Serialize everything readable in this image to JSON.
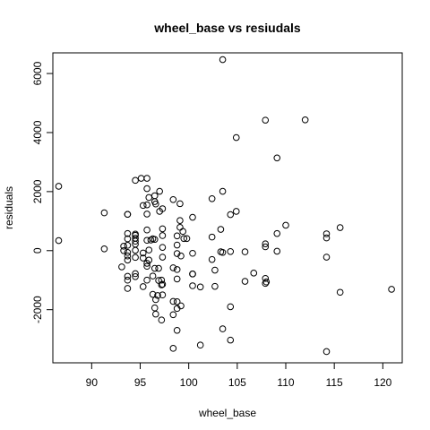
{
  "chart_data": {
    "type": "scatter",
    "title": "wheel_base  vs resiudals",
    "xlabel": "wheel_base",
    "ylabel": "residuals",
    "xlim": [
      86.0,
      122.0
    ],
    "ylim": [
      -3800,
      6700
    ],
    "xticks": [
      90,
      95,
      100,
      105,
      110,
      115,
      120
    ],
    "yticks": [
      -2000,
      0,
      2000,
      4000,
      6000
    ],
    "grid": false,
    "marker": "open-circle",
    "points": [
      [
        86.6,
        2180
      ],
      [
        86.6,
        340
      ],
      [
        91.3,
        1280
      ],
      [
        91.3,
        60
      ],
      [
        93.1,
        -550
      ],
      [
        93.3,
        0
      ],
      [
        93.3,
        150
      ],
      [
        93.7,
        -180
      ],
      [
        93.7,
        -320
      ],
      [
        93.7,
        -60
      ],
      [
        93.7,
        180
      ],
      [
        93.7,
        400
      ],
      [
        93.7,
        580
      ],
      [
        93.7,
        1230
      ],
      [
        93.7,
        1230
      ],
      [
        93.7,
        -870
      ],
      [
        93.7,
        -1000
      ],
      [
        93.7,
        -1280
      ],
      [
        94.5,
        -780
      ],
      [
        94.5,
        -880
      ],
      [
        94.5,
        220
      ],
      [
        94.5,
        320
      ],
      [
        94.5,
        420
      ],
      [
        94.5,
        520
      ],
      [
        94.5,
        2380
      ],
      [
        94.5,
        -230
      ],
      [
        94.5,
        560
      ],
      [
        94.5,
        10
      ],
      [
        95.1,
        2450
      ],
      [
        95.3,
        1530
      ],
      [
        95.3,
        -80
      ],
      [
        95.3,
        -250
      ],
      [
        95.3,
        -1220
      ],
      [
        95.7,
        2450
      ],
      [
        95.7,
        -530
      ],
      [
        95.7,
        -430
      ],
      [
        95.7,
        350
      ],
      [
        95.7,
        700
      ],
      [
        95.7,
        1240
      ],
      [
        95.7,
        1550
      ],
      [
        95.7,
        -1000
      ],
      [
        95.7,
        2100
      ],
      [
        95.9,
        1800
      ],
      [
        95.9,
        20
      ],
      [
        95.9,
        -320
      ],
      [
        96.1,
        360
      ],
      [
        96.3,
        -1480
      ],
      [
        96.3,
        -860
      ],
      [
        96.3,
        400
      ],
      [
        96.5,
        -600
      ],
      [
        96.5,
        -1940
      ],
      [
        96.5,
        1860
      ],
      [
        96.5,
        1660
      ],
      [
        96.5,
        380
      ],
      [
        96.6,
        -1660
      ],
      [
        96.6,
        1580
      ],
      [
        96.6,
        -2150
      ],
      [
        96.8,
        -1520
      ],
      [
        96.9,
        -600
      ],
      [
        96.9,
        -1010
      ],
      [
        97.0,
        1330
      ],
      [
        97.0,
        2010
      ],
      [
        97.2,
        -2350
      ],
      [
        97.2,
        -1000
      ],
      [
        97.2,
        -1160
      ],
      [
        97.3,
        1420
      ],
      [
        97.3,
        740
      ],
      [
        97.3,
        -1500
      ],
      [
        97.3,
        510
      ],
      [
        97.3,
        110
      ],
      [
        97.3,
        -1140
      ],
      [
        97.3,
        -220
      ],
      [
        98.4,
        -3310
      ],
      [
        98.4,
        -2170
      ],
      [
        98.4,
        -1720
      ],
      [
        98.4,
        -580
      ],
      [
        98.4,
        1730
      ],
      [
        98.8,
        -1730
      ],
      [
        98.8,
        -2700
      ],
      [
        98.8,
        -1960
      ],
      [
        98.8,
        -640
      ],
      [
        98.8,
        -960
      ],
      [
        98.8,
        -100
      ],
      [
        98.8,
        190
      ],
      [
        98.8,
        500
      ],
      [
        99.1,
        1020
      ],
      [
        99.1,
        1590
      ],
      [
        99.1,
        790
      ],
      [
        99.2,
        -180
      ],
      [
        99.2,
        -1870
      ],
      [
        99.4,
        650
      ],
      [
        99.5,
        410
      ],
      [
        99.8,
        410
      ],
      [
        100.4,
        1130
      ],
      [
        100.4,
        -790
      ],
      [
        100.4,
        -790
      ],
      [
        100.4,
        -1190
      ],
      [
        100.4,
        -90
      ],
      [
        101.2,
        -1230
      ],
      [
        101.2,
        -3200
      ],
      [
        102.4,
        1760
      ],
      [
        102.4,
        -300
      ],
      [
        102.4,
        460
      ],
      [
        102.7,
        -1210
      ],
      [
        102.7,
        -660
      ],
      [
        103.3,
        -40
      ],
      [
        103.3,
        720
      ],
      [
        103.5,
        6470
      ],
      [
        103.5,
        -60
      ],
      [
        103.5,
        2010
      ],
      [
        103.5,
        -2650
      ],
      [
        104.3,
        1220
      ],
      [
        104.3,
        -1900
      ],
      [
        104.3,
        -3030
      ],
      [
        104.3,
        -30
      ],
      [
        104.9,
        3830
      ],
      [
        104.9,
        1330
      ],
      [
        105.8,
        -1040
      ],
      [
        105.8,
        -40
      ],
      [
        106.7,
        -760
      ],
      [
        107.9,
        130
      ],
      [
        107.9,
        230
      ],
      [
        107.9,
        -940
      ],
      [
        107.9,
        -1110
      ],
      [
        107.9,
        4420
      ],
      [
        108.0,
        -1060
      ],
      [
        109.1,
        3140
      ],
      [
        109.1,
        -20
      ],
      [
        109.1,
        580
      ],
      [
        110.0,
        860
      ],
      [
        112.0,
        4430
      ],
      [
        114.2,
        570
      ],
      [
        114.2,
        430
      ],
      [
        114.2,
        -220
      ],
      [
        114.2,
        -3420
      ],
      [
        115.6,
        780
      ],
      [
        115.6,
        -1410
      ],
      [
        120.9,
        -1310
      ]
    ]
  }
}
